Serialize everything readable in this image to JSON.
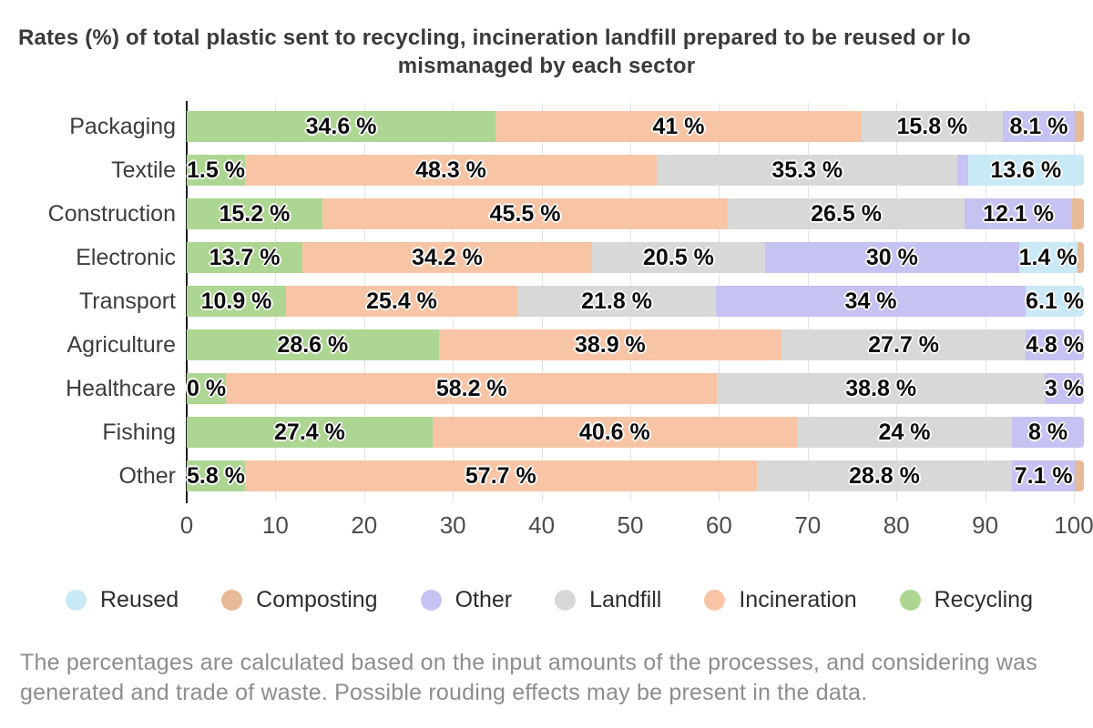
{
  "chart_data": {
    "type": "stacked-bar-horizontal",
    "title_line1": "Rates (%) of total plastic sent to recycling, incineration landfill prepared to be reused or lo",
    "title_line2": "mismanaged by each sector",
    "xlabel": "",
    "ylabel": "",
    "x_range": [
      0,
      100
    ],
    "x_ticks": [
      "0",
      "10",
      "20",
      "30",
      "40",
      "50",
      "60",
      "70",
      "80",
      "90",
      "100"
    ],
    "grid": true,
    "legend_position": "bottom",
    "colors": {
      "reused": "#c9e9f7",
      "composting": "#e7ba98",
      "other": "#c6c2f2",
      "landfill": "#d8d8d8",
      "incineration": "#f7c5a6",
      "recycling": "#aed693"
    },
    "legend": [
      {
        "name": "Reused",
        "key": "reused"
      },
      {
        "name": "Composting",
        "key": "composting"
      },
      {
        "name": "Other",
        "key": "other"
      },
      {
        "name": "Landfill",
        "key": "landfill"
      },
      {
        "name": "Incineration",
        "key": "incineration"
      },
      {
        "name": "Recycling",
        "key": "recycling"
      }
    ],
    "rows": [
      {
        "label": "Packaging",
        "segments": [
          {
            "key": "recycling",
            "value": 34.6,
            "label": "34.6 %"
          },
          {
            "key": "incineration",
            "value": 41,
            "label": "41 %"
          },
          {
            "key": "landfill",
            "value": 15.8,
            "label": "15.8 %"
          },
          {
            "key": "other",
            "value": 8.1,
            "label": "8.1 %"
          },
          {
            "key": "composting",
            "value": 1.0,
            "label": ""
          }
        ]
      },
      {
        "label": "Textile",
        "segments": [
          {
            "key": "recycling",
            "value": 1.5,
            "label": "1.5 %"
          },
          {
            "key": "incineration",
            "value": 48.3,
            "label": "48.3 %"
          },
          {
            "key": "landfill",
            "value": 35.3,
            "label": "35.3 %"
          },
          {
            "key": "other",
            "value": 1.2,
            "label": ""
          },
          {
            "key": "reused",
            "value": 13.6,
            "label": "13.6 %"
          }
        ]
      },
      {
        "label": "Construction",
        "segments": [
          {
            "key": "recycling",
            "value": 15.2,
            "label": "15.2 %"
          },
          {
            "key": "incineration",
            "value": 45.5,
            "label": "45.5 %"
          },
          {
            "key": "landfill",
            "value": 26.5,
            "label": "26.5 %"
          },
          {
            "key": "other",
            "value": 12.1,
            "label": "12.1 %"
          },
          {
            "key": "composting",
            "value": 1.3,
            "label": ""
          }
        ]
      },
      {
        "label": "Electronic",
        "segments": [
          {
            "key": "recycling",
            "value": 13.7,
            "label": "13.7 %"
          },
          {
            "key": "incineration",
            "value": 34.2,
            "label": "34.2 %"
          },
          {
            "key": "landfill",
            "value": 20.5,
            "label": "20.5 %"
          },
          {
            "key": "other",
            "value": 30,
            "label": "30 %"
          },
          {
            "key": "reused",
            "value": 1.4,
            "label": "1.4 %",
            "align": "end"
          },
          {
            "key": "composting",
            "value": 0.8,
            "label": ""
          }
        ]
      },
      {
        "label": "Transport",
        "segments": [
          {
            "key": "recycling",
            "value": 10.9,
            "label": "10.9 %"
          },
          {
            "key": "incineration",
            "value": 25.4,
            "label": "25.4 %"
          },
          {
            "key": "landfill",
            "value": 21.8,
            "label": "21.8 %"
          },
          {
            "key": "other",
            "value": 34,
            "label": "34 %"
          },
          {
            "key": "reused",
            "value": 6.1,
            "label": "6.1 %"
          }
        ]
      },
      {
        "label": "Agriculture",
        "segments": [
          {
            "key": "recycling",
            "value": 28.6,
            "label": "28.6 %"
          },
          {
            "key": "incineration",
            "value": 38.9,
            "label": "38.9 %"
          },
          {
            "key": "landfill",
            "value": 27.7,
            "label": "27.7 %"
          },
          {
            "key": "other",
            "value": 4.8,
            "label": "4.8 %"
          }
        ]
      },
      {
        "label": "Healthcare",
        "segments": [
          {
            "key": "recycling",
            "value": 0,
            "label": "0 %",
            "align": "start"
          },
          {
            "key": "incineration",
            "value": 58.2,
            "label": "58.2 %"
          },
          {
            "key": "landfill",
            "value": 38.8,
            "label": "38.8 %"
          },
          {
            "key": "other",
            "value": 3,
            "label": "3 %"
          }
        ]
      },
      {
        "label": "Fishing",
        "segments": [
          {
            "key": "recycling",
            "value": 27.4,
            "label": "27.4 %"
          },
          {
            "key": "incineration",
            "value": 40.6,
            "label": "40.6 %"
          },
          {
            "key": "landfill",
            "value": 24,
            "label": "24 %"
          },
          {
            "key": "other",
            "value": 8,
            "label": "8 %"
          }
        ]
      },
      {
        "label": "Other",
        "segments": [
          {
            "key": "recycling",
            "value": 5.8,
            "label": "5.8 %"
          },
          {
            "key": "incineration",
            "value": 57.7,
            "label": "57.7 %"
          },
          {
            "key": "landfill",
            "value": 28.8,
            "label": "28.8 %"
          },
          {
            "key": "other",
            "value": 7.1,
            "label": "7.1 %"
          },
          {
            "key": "composting",
            "value": 1.0,
            "label": ""
          }
        ]
      },
      {
        "label": "",
        "segments": []
      }
    ],
    "footnote_line1": "The percentages are calculated based on the input amounts of the processes, and considering was",
    "footnote_line2": "generated and trade of waste. Possible rouding effects may be present in the data."
  }
}
